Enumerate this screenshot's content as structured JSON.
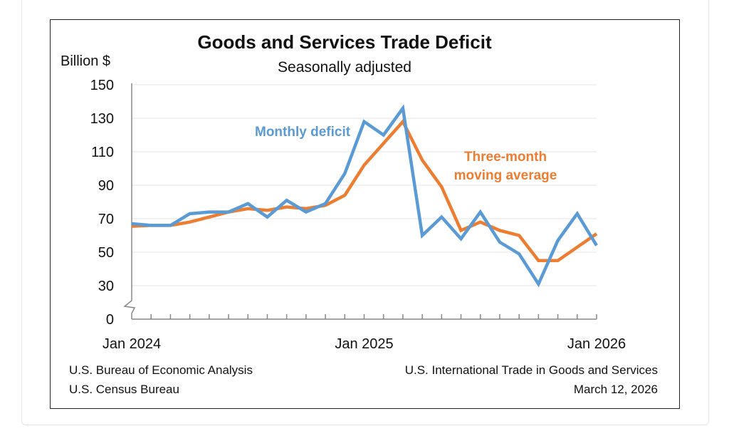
{
  "chart_data": {
    "type": "line",
    "title": "Goods and Services Trade Deficit",
    "subtitle": "Seasonally adjusted",
    "ylabel": "Billion $",
    "ylim": [
      0,
      150
    ],
    "yticks": [
      0,
      30,
      50,
      70,
      90,
      110,
      130,
      150
    ],
    "axis_break": "between 0 and 30",
    "x": [
      "Jan 2024",
      "Feb 2024",
      "Mar 2024",
      "Apr 2024",
      "May 2024",
      "Jun 2024",
      "Jul 2024",
      "Aug 2024",
      "Sep 2024",
      "Oct 2024",
      "Nov 2024",
      "Dec 2024",
      "Jan 2025",
      "Feb 2025",
      "Mar 2025",
      "Apr 2025",
      "May 2025",
      "Jun 2025",
      "Jul 2025",
      "Aug 2025",
      "Sep 2025",
      "Oct 2025",
      "Nov 2025",
      "Dec 2025",
      "Jan 2026"
    ],
    "xtick_labels": [
      "Jan 2024",
      "Jan 2025",
      "Jan 2026"
    ],
    "grid": true,
    "series": [
      {
        "name": "Monthly deficit",
        "color": "#5b9bd5",
        "values": [
          67,
          66,
          66,
          73,
          74,
          74,
          79,
          71,
          81,
          74,
          79,
          97,
          128,
          120,
          136,
          60,
          71,
          58,
          74,
          56,
          49,
          31,
          57,
          73,
          54
        ]
      },
      {
        "name": "Three-month moving average",
        "label_lines": [
          "Three-month",
          "moving average"
        ],
        "color": "#ed7d31",
        "values": [
          65.5,
          66,
          66,
          68,
          71,
          74,
          76,
          75,
          77,
          76,
          78,
          84,
          102,
          115,
          128,
          105,
          89,
          63,
          68,
          63,
          60,
          45,
          45,
          53,
          61
        ]
      }
    ]
  },
  "footer": {
    "left": [
      "U.S. Bureau of Economic Analysis",
      "U.S. Census Bureau"
    ],
    "right": [
      "U.S. International Trade in Goods and Services",
      "March 12, 2026"
    ]
  }
}
